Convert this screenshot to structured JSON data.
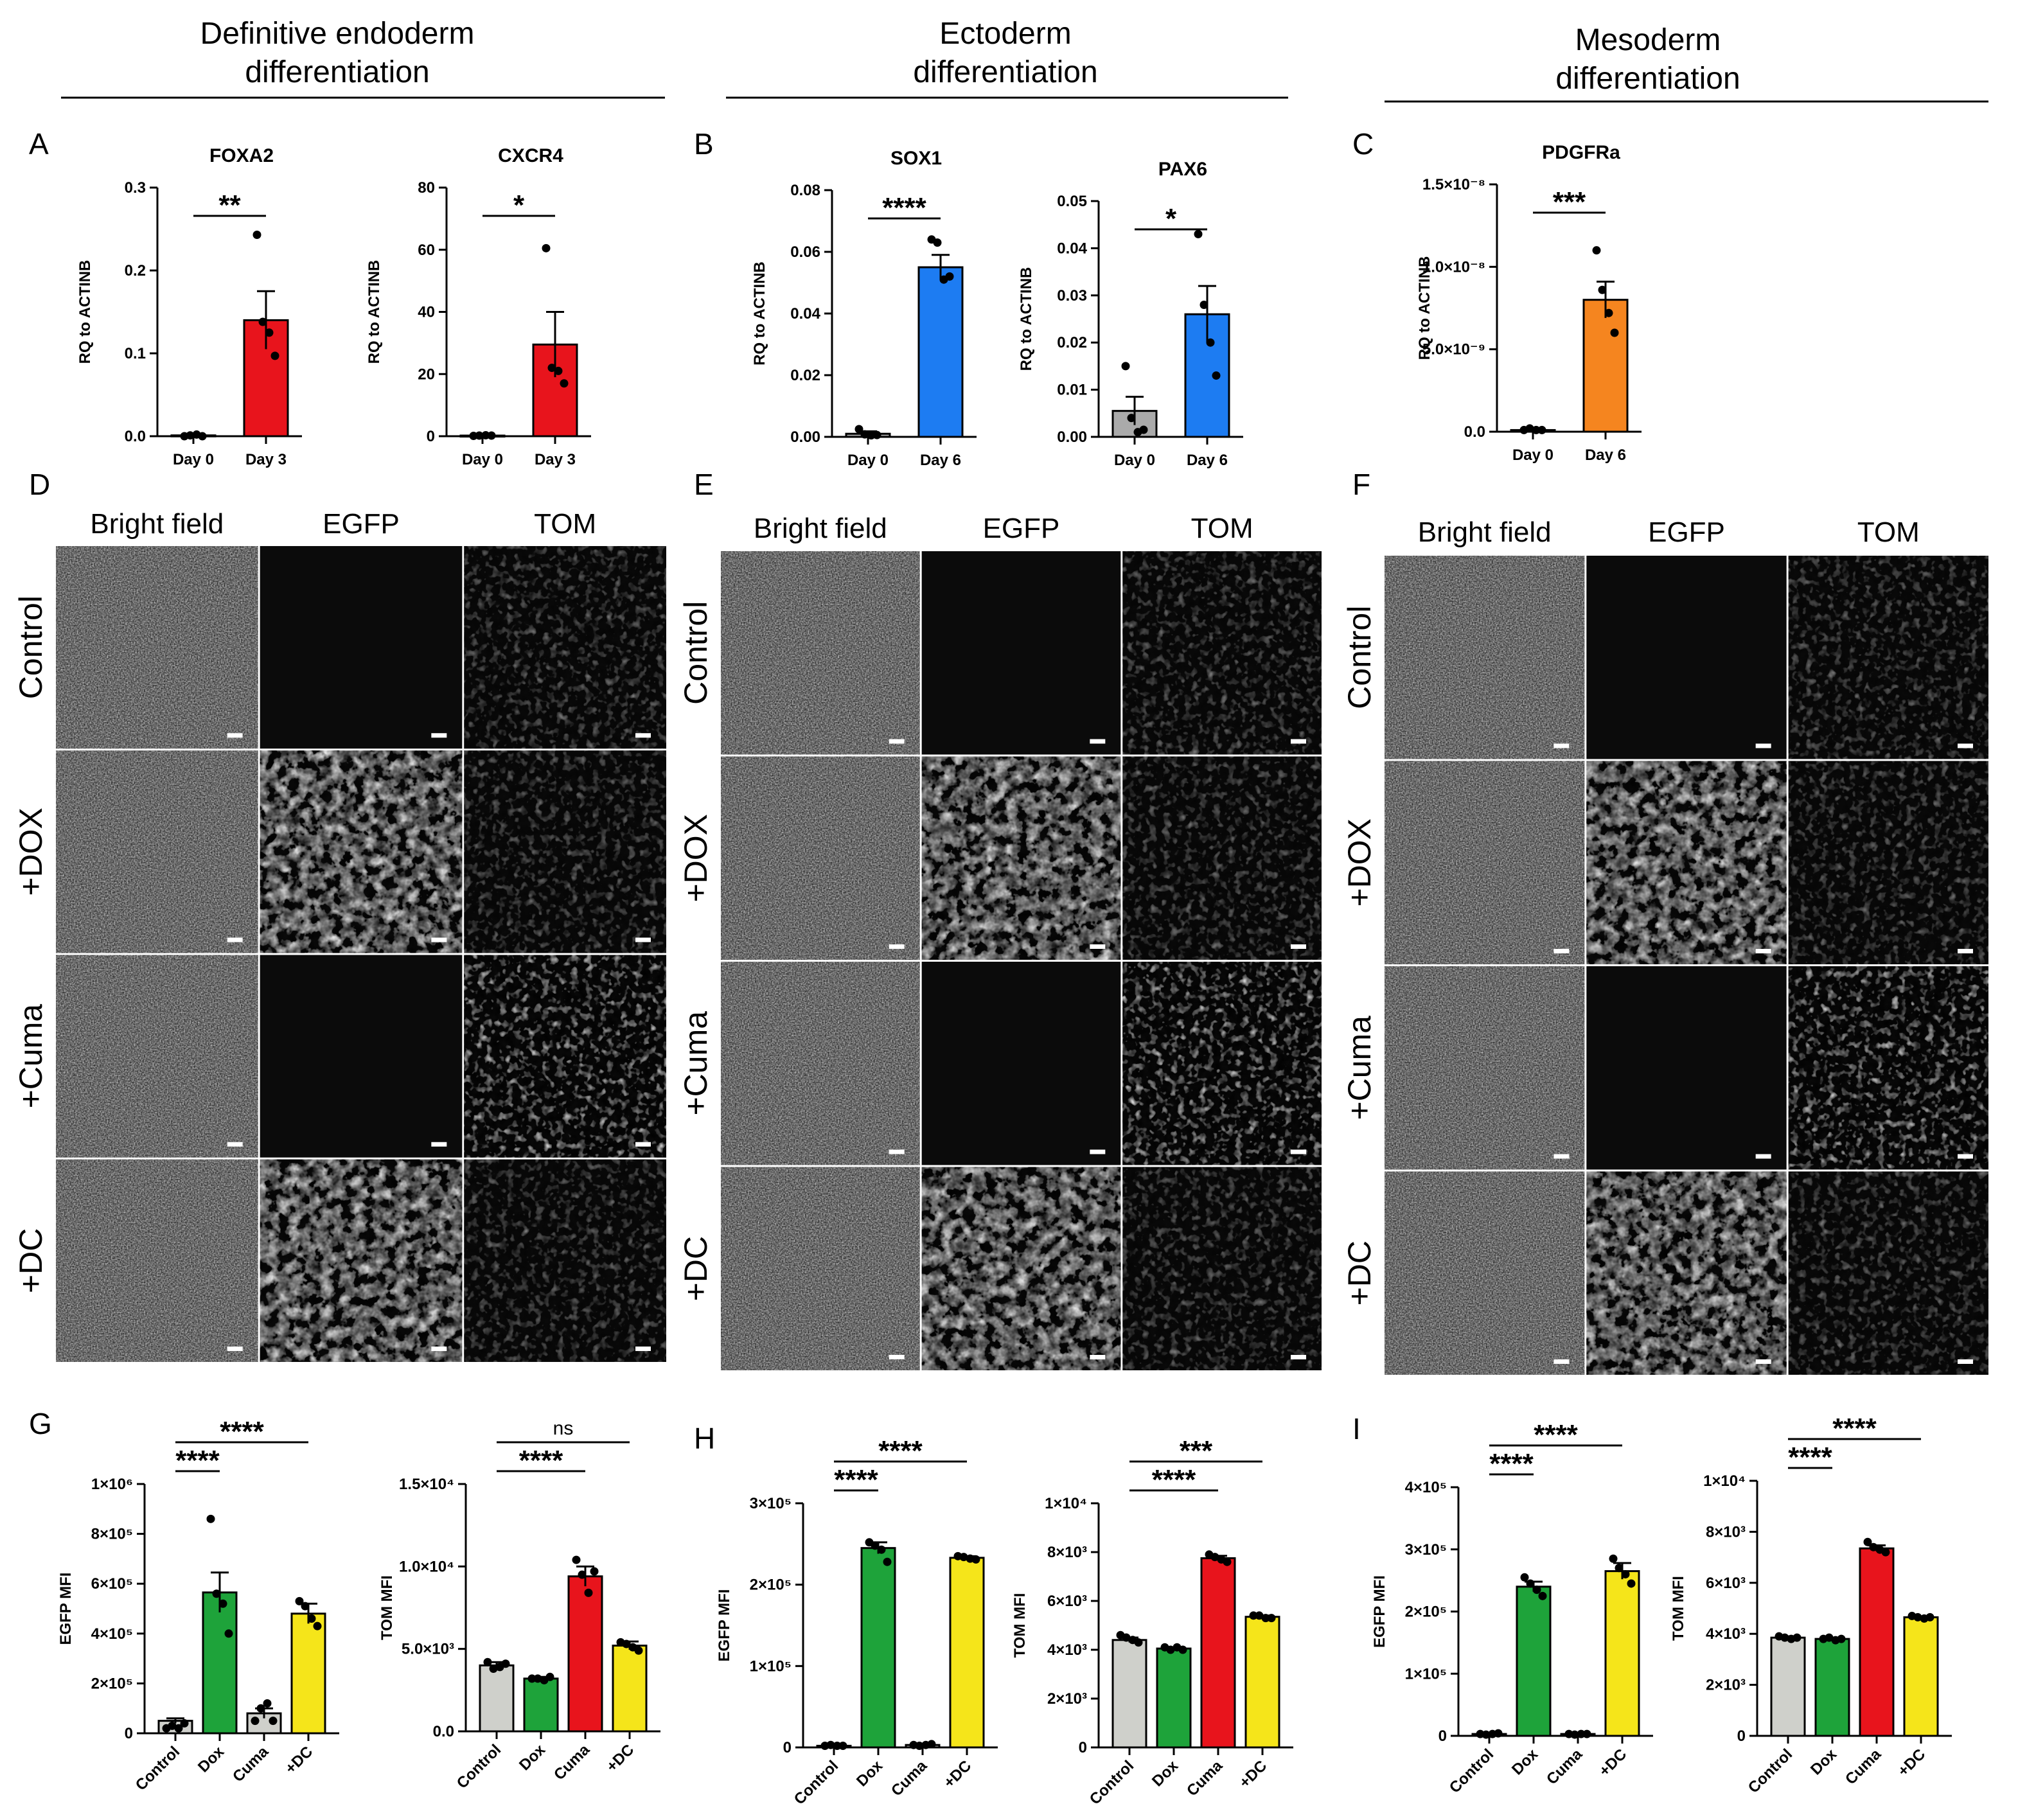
{
  "headers": [
    {
      "line1": "Definitive endoderm",
      "line2": "differentiation"
    },
    {
      "line1": "Ectoderm",
      "line2": "differentiation"
    },
    {
      "line1": "Mesoderm",
      "line2": "differentiation"
    }
  ],
  "panel_letters": [
    "A",
    "B",
    "C",
    "D",
    "E",
    "F",
    "G",
    "H",
    "I"
  ],
  "micro_col_headers": [
    "Bright field",
    "EGFP",
    "TOM"
  ],
  "micro_row_labels": [
    "Control",
    "+DOX",
    "+Cuma",
    "+DC"
  ],
  "colors": {
    "red": "#e8141c",
    "blue": "#1d7cf2",
    "orange": "#f5851f",
    "grey": "#aaaaaa",
    "lightgrey": "#cfd0cb",
    "green": "#1ea33a",
    "yellow": "#f5e51a"
  },
  "chart_data": [
    {
      "id": "A1",
      "type": "bar",
      "title": "FOXA2",
      "ylabel": "RQ to ACTINB",
      "categories": [
        "Day 0",
        "Day 3"
      ],
      "values": [
        0.001,
        0.14
      ],
      "sem": [
        0.001,
        0.035
      ],
      "colors": [
        "#aaaaaa",
        "#e8141c"
      ],
      "points": [
        [
          0,
          0.001,
          0.002,
          0
        ],
        [
          0.243,
          0.138,
          0.125,
          0.097
        ]
      ],
      "ylim": [
        0,
        0.3
      ],
      "yticks": [
        "0.0",
        "0.1",
        "0.2",
        "0.3"
      ],
      "tickvals": [
        0,
        0.1,
        0.2,
        0.3
      ],
      "sig": [
        {
          "from": 0,
          "to": 1,
          "label": "**"
        }
      ]
    },
    {
      "id": "A2",
      "type": "bar",
      "title": "CXCR4",
      "ylabel": "RQ to ACTINB",
      "categories": [
        "Day 0",
        "Day 3"
      ],
      "values": [
        0.2,
        29.5
      ],
      "sem": [
        0.1,
        10.5
      ],
      "colors": [
        "#aaaaaa",
        "#e8141c"
      ],
      "points": [
        [
          0.1,
          0.2,
          0.3,
          0.2
        ],
        [
          60.5,
          22,
          21,
          17
        ]
      ],
      "ylim": [
        0,
        80
      ],
      "yticks": [
        "0",
        "20",
        "40",
        "60",
        "80"
      ],
      "tickvals": [
        0,
        20,
        40,
        60,
        80
      ],
      "sig": [
        {
          "from": 0,
          "to": 1,
          "label": "*"
        }
      ]
    },
    {
      "id": "B1",
      "type": "bar",
      "title": "SOX1",
      "ylabel": "RQ to ACTINB",
      "categories": [
        "Day 0",
        "Day 6"
      ],
      "values": [
        0.001,
        0.055
      ],
      "sem": [
        0.0008,
        0.004
      ],
      "colors": [
        "#aaaaaa",
        "#1d7cf2"
      ],
      "points": [
        [
          0.0025,
          0.0008,
          0.0005,
          0.0006
        ],
        [
          0.064,
          0.063,
          0.051,
          0.052
        ]
      ],
      "ylim": [
        0,
        0.08
      ],
      "yticks": [
        "0.00",
        "0.02",
        "0.04",
        "0.06",
        "0.08"
      ],
      "tickvals": [
        0,
        0.02,
        0.04,
        0.06,
        0.08
      ],
      "sig": [
        {
          "from": 0,
          "to": 1,
          "label": "****"
        }
      ]
    },
    {
      "id": "B2",
      "type": "bar",
      "title": "PAX6",
      "ylabel": "RQ to ACTINB",
      "categories": [
        "Day 0",
        "Day 6"
      ],
      "values": [
        0.0055,
        0.026
      ],
      "sem": [
        0.003,
        0.006
      ],
      "colors": [
        "#aaaaaa",
        "#1d7cf2"
      ],
      "points": [
        [
          0.015,
          0.004,
          0.001,
          0.0015
        ],
        [
          0.043,
          0.028,
          0.02,
          0.013
        ]
      ],
      "ylim": [
        0,
        0.05
      ],
      "yticks": [
        "0.00",
        "0.01",
        "0.02",
        "0.03",
        "0.04",
        "0.05"
      ],
      "tickvals": [
        0,
        0.01,
        0.02,
        0.03,
        0.04,
        0.05
      ],
      "sig": [
        {
          "from": 0,
          "to": 1,
          "label": "*"
        }
      ]
    },
    {
      "id": "C1",
      "type": "bar",
      "title": "PDGFRa",
      "ylabel": "RQ to ACTINB",
      "categories": [
        "Day 0",
        "Day 6"
      ],
      "values": [
        0.1,
        8.0
      ],
      "sem": [
        0.05,
        1.1
      ],
      "colors": [
        "#aaaaaa",
        "#f5851f"
      ],
      "points": [
        [
          0.1,
          0.2,
          0.1,
          0.1
        ],
        [
          11.0,
          8.6,
          7.2,
          6.0
        ]
      ],
      "ylim": [
        0,
        15
      ],
      "yticks": [
        "0.0",
        "5.0×10⁻⁹",
        "1.0×10⁻⁸",
        "1.5×10⁻⁸"
      ],
      "tickvals": [
        0,
        5,
        10,
        15
      ],
      "sig": [
        {
          "from": 0,
          "to": 1,
          "label": "***"
        }
      ]
    },
    {
      "id": "G1",
      "type": "bar",
      "title": "",
      "ylabel": "EGFP MFI",
      "categories": [
        "Control",
        "Dox",
        "Cuma",
        "+DC"
      ],
      "values": [
        5,
        56.5,
        8,
        48
      ],
      "sem": [
        1,
        8,
        2,
        4
      ],
      "colors": [
        "#cfd0cb",
        "#1ea33a",
        "#cfd0cb",
        "#f5e51a"
      ],
      "points": [
        [
          2,
          3,
          2,
          4
        ],
        [
          86,
          56,
          52,
          40
        ],
        [
          5,
          10,
          12,
          5
        ],
        [
          53,
          51,
          46,
          43
        ]
      ],
      "ylim": [
        0,
        100
      ],
      "yticks": [
        "0",
        "2×10⁵",
        "4×10⁵",
        "6×10⁵",
        "8×10⁵",
        "1×10⁶"
      ],
      "tickvals": [
        0,
        20,
        40,
        60,
        80,
        100
      ],
      "sig": [
        {
          "from": 0,
          "to": 1,
          "label": "****"
        },
        {
          "from": 0,
          "to": 3,
          "label": "****"
        }
      ]
    },
    {
      "id": "G2",
      "type": "bar",
      "title": "",
      "ylabel": "TOM MFI",
      "categories": [
        "Control",
        "Dox",
        "Cuma",
        "+DC"
      ],
      "values": [
        4.0,
        3.2,
        9.4,
        5.2
      ],
      "sem": [
        0.2,
        0.1,
        0.6,
        0.25
      ],
      "colors": [
        "#cfd0cb",
        "#1ea33a",
        "#e8141c",
        "#f5e51a"
      ],
      "points": [
        [
          4.2,
          3.8,
          3.9,
          4.1
        ],
        [
          3.2,
          3.2,
          3.1,
          3.3
        ],
        [
          10.4,
          9.5,
          8.4,
          9.7
        ],
        [
          5.4,
          5.3,
          5.1,
          4.9
        ]
      ],
      "ylim": [
        0,
        15
      ],
      "yticks": [
        "0.0",
        "5.0×10³",
        "1.0×10⁴",
        "1.5×10⁴"
      ],
      "tickvals": [
        0,
        5,
        10,
        15
      ],
      "sig": [
        {
          "from": 0,
          "to": 2,
          "label": "****"
        },
        {
          "from": 0,
          "to": 3,
          "label": "ns"
        }
      ]
    },
    {
      "id": "H1",
      "type": "bar",
      "title": "",
      "ylabel": "EGFP MFI",
      "categories": [
        "Control",
        "Dox",
        "Cuma",
        "+DC"
      ],
      "values": [
        0.2,
        24.5,
        0.3,
        23.3
      ],
      "sem": [
        0.05,
        0.7,
        0.05,
        0.2
      ],
      "colors": [
        "#cfd0cb",
        "#1ea33a",
        "#cfd0cb",
        "#f5e51a"
      ],
      "points": [
        [
          0.2,
          0.3,
          0.2,
          0.2
        ],
        [
          25.2,
          24.8,
          24.3,
          22.8
        ],
        [
          0.3,
          0.2,
          0.3,
          0.4
        ],
        [
          23.5,
          23.4,
          23.2,
          23.1
        ]
      ],
      "ylim": [
        0,
        30
      ],
      "yticks": [
        "0",
        "1×10⁵",
        "2×10⁵",
        "3×10⁵"
      ],
      "tickvals": [
        0,
        10,
        20,
        30
      ],
      "sig": [
        {
          "from": 0,
          "to": 1,
          "label": "****"
        },
        {
          "from": 0,
          "to": 3,
          "label": "****"
        }
      ]
    },
    {
      "id": "H2",
      "type": "bar",
      "title": "",
      "ylabel": "TOM MFI",
      "categories": [
        "Control",
        "Dox",
        "Cuma",
        "+DC"
      ],
      "values": [
        4.4,
        4.05,
        7.75,
        5.35
      ],
      "sem": [
        0.1,
        0.05,
        0.1,
        0.05
      ],
      "colors": [
        "#cfd0cb",
        "#1ea33a",
        "#e8141c",
        "#f5e51a"
      ],
      "points": [
        [
          4.6,
          4.5,
          4.4,
          4.3
        ],
        [
          4.1,
          4.0,
          4.1,
          4.0
        ],
        [
          7.9,
          7.8,
          7.7,
          7.6
        ],
        [
          5.4,
          5.4,
          5.3,
          5.3
        ]
      ],
      "ylim": [
        0,
        10
      ],
      "yticks": [
        "0",
        "2×10³",
        "4×10³",
        "6×10³",
        "8×10³",
        "1×10⁴"
      ],
      "tickvals": [
        0,
        2,
        4,
        6,
        8,
        10
      ],
      "sig": [
        {
          "from": 0,
          "to": 2,
          "label": "****"
        },
        {
          "from": 0,
          "to": 3,
          "label": "***"
        }
      ]
    },
    {
      "id": "I1",
      "type": "bar",
      "title": "",
      "ylabel": "EGFP MFI",
      "categories": [
        "Control",
        "Dox",
        "Cuma",
        "+DC"
      ],
      "values": [
        0.3,
        24.0,
        0.3,
        26.5
      ],
      "sem": [
        0.05,
        0.8,
        0.05,
        1.3
      ],
      "colors": [
        "#cfd0cb",
        "#1ea33a",
        "#cfd0cb",
        "#f5e51a"
      ],
      "points": [
        [
          0.3,
          0.2,
          0.3,
          0.4
        ],
        [
          25.5,
          24.5,
          23.5,
          22.5
        ],
        [
          0.3,
          0.2,
          0.3,
          0.3
        ],
        [
          28.5,
          27.0,
          26.0,
          24.5
        ]
      ],
      "ylim": [
        0,
        40
      ],
      "yticks": [
        "0",
        "1×10⁵",
        "2×10⁵",
        "3×10⁵",
        "4×10⁵"
      ],
      "tickvals": [
        0,
        10,
        20,
        30,
        40
      ],
      "sig": [
        {
          "from": 0,
          "to": 1,
          "label": "****"
        },
        {
          "from": 0,
          "to": 3,
          "label": "****"
        }
      ]
    },
    {
      "id": "I2",
      "type": "bar",
      "title": "",
      "ylabel": "TOM MFI",
      "categories": [
        "Control",
        "Dox",
        "Cuma",
        "+DC"
      ],
      "values": [
        3.85,
        3.8,
        7.35,
        4.65
      ],
      "sem": [
        0.05,
        0.05,
        0.12,
        0.03
      ],
      "colors": [
        "#cfd0cb",
        "#1ea33a",
        "#e8141c",
        "#f5e51a"
      ],
      "points": [
        [
          3.9,
          3.85,
          3.8,
          3.85
        ],
        [
          3.8,
          3.85,
          3.75,
          3.8
        ],
        [
          7.6,
          7.4,
          7.3,
          7.2
        ],
        [
          4.7,
          4.65,
          4.6,
          4.65
        ]
      ],
      "ylim": [
        0,
        10
      ],
      "yticks": [
        "0",
        "2×10³",
        "4×10³",
        "6×10³",
        "8×10³",
        "1×10⁴"
      ],
      "tickvals": [
        0,
        2,
        4,
        6,
        8,
        10
      ],
      "sig": [
        {
          "from": 0,
          "to": 1,
          "label": "****"
        },
        {
          "from": 0,
          "to": 3,
          "label": "****"
        }
      ]
    }
  ]
}
